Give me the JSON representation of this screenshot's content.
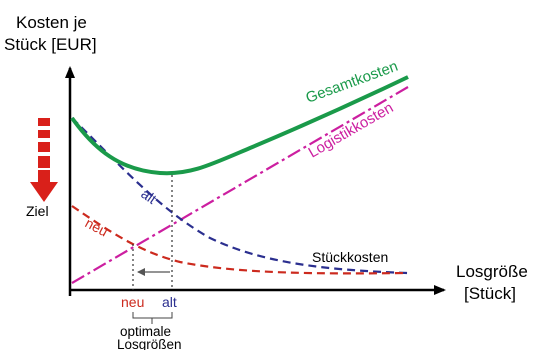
{
  "axes": {
    "y_label_line1": "Kosten je",
    "y_label_line2": "Stück [EUR]",
    "x_label_line1": "Losgröße",
    "x_label_line2": "[Stück]"
  },
  "curves": {
    "gesamtkosten": "Gesamtkosten",
    "logistikkosten": "Logistikkosten",
    "stueckkosten": "Stückkosten",
    "alt": "alt",
    "neu": "neu"
  },
  "annotations": {
    "ziel": "Ziel",
    "tick_neu": "neu",
    "tick_alt": "alt",
    "optimal_line1": "optimale",
    "optimal_line2": "Losgrößen"
  },
  "colors": {
    "gesamtkosten": "#1a9a4a",
    "logistikkosten": "#cc1fa0",
    "alt": "#2b2f8f",
    "neu": "#cc2a1e",
    "arrow_red": "#d9201a",
    "axis": "#000000"
  }
}
